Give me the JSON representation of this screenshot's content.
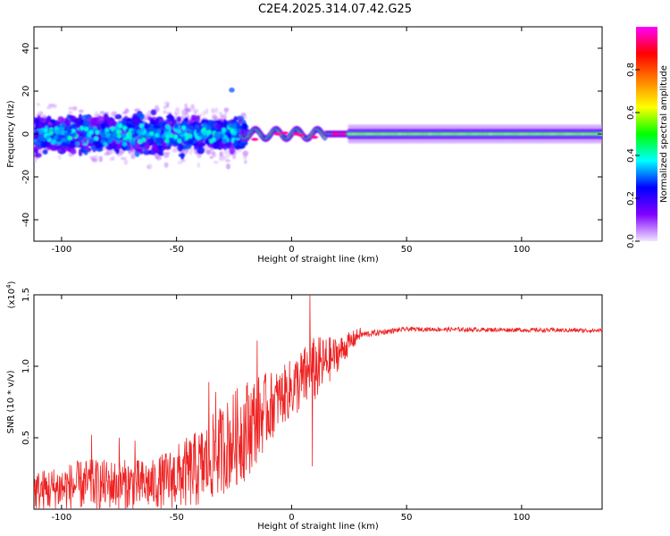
{
  "title": "C2E4.2025.314.07.42.G25",
  "chart_data": [
    {
      "type": "heatmap",
      "name": "spectrogram",
      "xlabel": "Height of straight line (km)",
      "ylabel": "Frequency (Hz)",
      "xlim": [
        -112,
        135
      ],
      "ylim": [
        -50,
        50
      ],
      "xticks": [
        -100,
        -50,
        0,
        50,
        100
      ],
      "yticks": [
        -40,
        -20,
        0,
        20,
        40
      ],
      "xtick_labels": [
        "-100",
        "-50",
        "0",
        "50",
        "100"
      ],
      "ytick_labels": [
        "-40",
        "-20",
        "0",
        "20",
        "40"
      ],
      "colorbar": {
        "label": "Normalized spectral amplitude",
        "range": [
          0,
          1
        ],
        "ticks": [
          0.0,
          0.2,
          0.4,
          0.6,
          0.8
        ],
        "tick_labels": [
          "0.0",
          "0.2",
          "0.4",
          "0.6",
          "0.8"
        ],
        "colors": [
          "#f2e6ff",
          "#8000ff",
          "#0000ff",
          "#00ffff",
          "#00ff00",
          "#ffff00",
          "#ff8000",
          "#ff0000",
          "#ff00ff"
        ]
      },
      "regions": [
        {
          "x_range": [
            -112,
            -22
          ],
          "freq_range": [
            -12,
            12
          ],
          "amplitude": "0.1-0.4",
          "description": "noisy scattered energy"
        },
        {
          "x_range": [
            -28,
            -24
          ],
          "freq_center": 20,
          "amplitude": "0.2"
        },
        {
          "x_range": [
            -22,
            25
          ],
          "freq_center": 0,
          "amplitude": "0.4-1.0",
          "description": "narrowing band with strong peaks"
        },
        {
          "x_range": [
            25,
            135
          ],
          "freq_center": 0,
          "amplitude": "0.5-0.9",
          "description": "steady narrow band"
        }
      ]
    },
    {
      "type": "line",
      "name": "snr",
      "xlabel": "Height of straight line (km)",
      "ylabel": "SNR (10 * v/v)",
      "y_multiplier": "(x10^4)",
      "multiplier_base": "(x10",
      "multiplier_exp": "4",
      "multiplier_close": ")",
      "xlim": [
        -112,
        135
      ],
      "ylim": [
        0,
        1.5
      ],
      "xticks": [
        -100,
        -50,
        0,
        50,
        100
      ],
      "yticks": [
        0.5,
        1.0,
        1.5
      ],
      "xtick_labels": [
        "-100",
        "-50",
        "0",
        "50",
        "100"
      ],
      "ytick_labels": [
        "0.5",
        "1.0",
        "1.5"
      ],
      "color": "#ee2222",
      "envelope_points": [
        {
          "x": -112,
          "base": 0.08,
          "spread": 0.18
        },
        {
          "x": -90,
          "base": 0.12,
          "spread": 0.22
        },
        {
          "x": -60,
          "base": 0.12,
          "spread": 0.22
        },
        {
          "x": -40,
          "base": 0.2,
          "spread": 0.35
        },
        {
          "x": -20,
          "base": 0.45,
          "spread": 0.45
        },
        {
          "x": -5,
          "base": 0.72,
          "spread": 0.25
        },
        {
          "x": 10,
          "base": 0.9,
          "spread": 0.3
        },
        {
          "x": 20,
          "base": 1.05,
          "spread": 0.15
        },
        {
          "x": 30,
          "base": 1.22,
          "spread": 0.05
        },
        {
          "x": 50,
          "base": 1.26,
          "spread": 0.03
        },
        {
          "x": 135,
          "base": 1.25,
          "spread": 0.03
        }
      ],
      "spikes": [
        {
          "x": -87,
          "y": 0.52
        },
        {
          "x": -75,
          "y": 0.5
        },
        {
          "x": -68,
          "y": 0.48
        },
        {
          "x": -36,
          "y": 0.89
        },
        {
          "x": -33,
          "y": 0.82
        },
        {
          "x": -15,
          "y": 1.18
        },
        {
          "x": 8,
          "y": 1.5
        },
        {
          "x": 9,
          "y": 0.3
        }
      ]
    }
  ]
}
